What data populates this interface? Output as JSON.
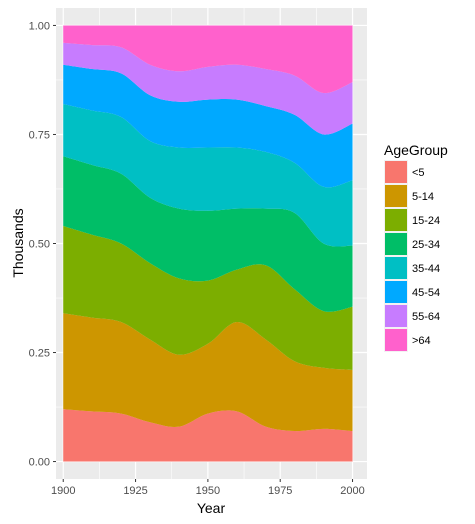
{
  "chart_data": {
    "type": "area",
    "stacked": true,
    "normalized": true,
    "title": "",
    "xlabel": "Year",
    "ylabel": "Thousands",
    "xlim": [
      1897.5,
      2005
    ],
    "ylim": [
      -0.04,
      1.04
    ],
    "x_ticks": [
      1900,
      1925,
      1950,
      1975,
      2000
    ],
    "x_tick_labels": [
      "1900",
      "1925",
      "1950",
      "1975",
      "2000"
    ],
    "y_ticks": [
      0,
      0.25,
      0.5,
      0.75,
      1.0
    ],
    "y_tick_labels": [
      "0.00",
      "0.25",
      "0.50",
      "0.75",
      "1.00"
    ],
    "grid": true,
    "legend": {
      "title": "AgeGroup",
      "position": "right",
      "labels": [
        "<5",
        "5-14",
        "15-24",
        "25-34",
        "35-44",
        "45-54",
        "55-64",
        ">64"
      ]
    },
    "x": [
      1900,
      1910,
      1920,
      1930,
      1940,
      1950,
      1960,
      1970,
      1980,
      1990,
      2000
    ],
    "series": [
      {
        "name": "<5",
        "color": "#F8766D",
        "values": [
          0.12,
          0.115,
          0.11,
          0.09,
          0.08,
          0.11,
          0.115,
          0.08,
          0.07,
          0.075,
          0.07
        ]
      },
      {
        "name": "5-14",
        "color": "#CD9600",
        "values": [
          0.22,
          0.215,
          0.21,
          0.19,
          0.165,
          0.16,
          0.205,
          0.2,
          0.16,
          0.14,
          0.14
        ]
      },
      {
        "name": "15-24",
        "color": "#7CAE00",
        "values": [
          0.2,
          0.19,
          0.18,
          0.175,
          0.175,
          0.145,
          0.12,
          0.17,
          0.165,
          0.13,
          0.145
        ]
      },
      {
        "name": "25-34",
        "color": "#00BE67",
        "values": [
          0.16,
          0.16,
          0.16,
          0.15,
          0.16,
          0.16,
          0.14,
          0.13,
          0.175,
          0.155,
          0.14
        ]
      },
      {
        "name": "35-44",
        "color": "#00BFC4",
        "values": [
          0.12,
          0.125,
          0.13,
          0.13,
          0.14,
          0.145,
          0.14,
          0.13,
          0.115,
          0.13,
          0.15
        ]
      },
      {
        "name": "45-54",
        "color": "#00A9FF",
        "values": [
          0.09,
          0.095,
          0.1,
          0.105,
          0.105,
          0.11,
          0.11,
          0.105,
          0.11,
          0.12,
          0.13
        ]
      },
      {
        "name": "55-64",
        "color": "#C77CFF",
        "values": [
          0.05,
          0.055,
          0.06,
          0.07,
          0.07,
          0.075,
          0.08,
          0.085,
          0.09,
          0.095,
          0.095
        ]
      },
      {
        "name": ">64",
        "color": "#FF61CC",
        "values": [
          0.04,
          0.045,
          0.05,
          0.09,
          0.105,
          0.095,
          0.09,
          0.1,
          0.115,
          0.155,
          0.13
        ]
      }
    ]
  }
}
